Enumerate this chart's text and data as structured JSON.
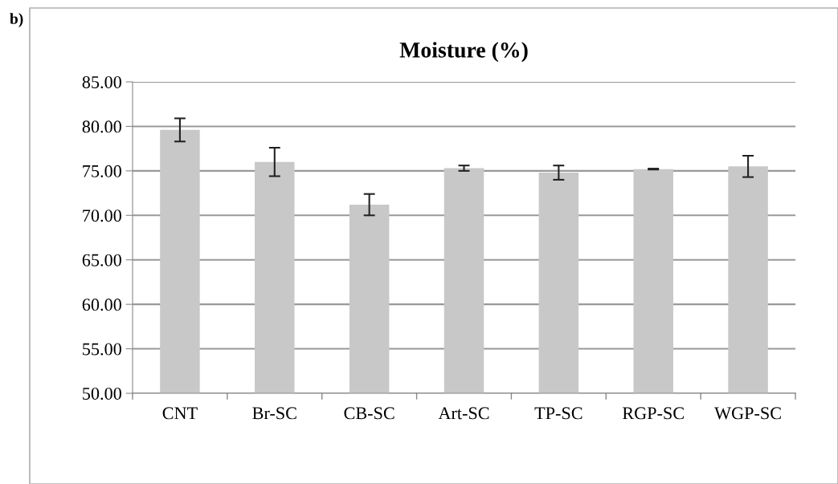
{
  "chart_data": {
    "type": "bar",
    "title": "Moisture (%)",
    "categories": [
      "CNT",
      "Br-SC",
      "CB-SC",
      "Art-SC",
      "TP-SC",
      "RGP-SC",
      "WGP-SC"
    ],
    "values": [
      79.6,
      76.0,
      71.2,
      75.3,
      74.8,
      75.2,
      75.5
    ],
    "errors": [
      1.3,
      1.6,
      1.2,
      0.3,
      0.8,
      0.05,
      1.2
    ],
    "color": "#c8c8c8",
    "ylim": [
      50,
      85
    ],
    "yticks": [
      {
        "value": 50,
        "label": "50.00"
      },
      {
        "value": 55,
        "label": "55.00"
      },
      {
        "value": 60,
        "label": "60.00"
      },
      {
        "value": 65,
        "label": "65.00"
      },
      {
        "value": 70,
        "label": "70.00"
      },
      {
        "value": 75,
        "label": "75.00"
      },
      {
        "value": 80,
        "label": "80.00"
      },
      {
        "value": 85,
        "label": "85.00"
      }
    ],
    "grid": "y",
    "annotations": [
      "b)"
    ]
  }
}
